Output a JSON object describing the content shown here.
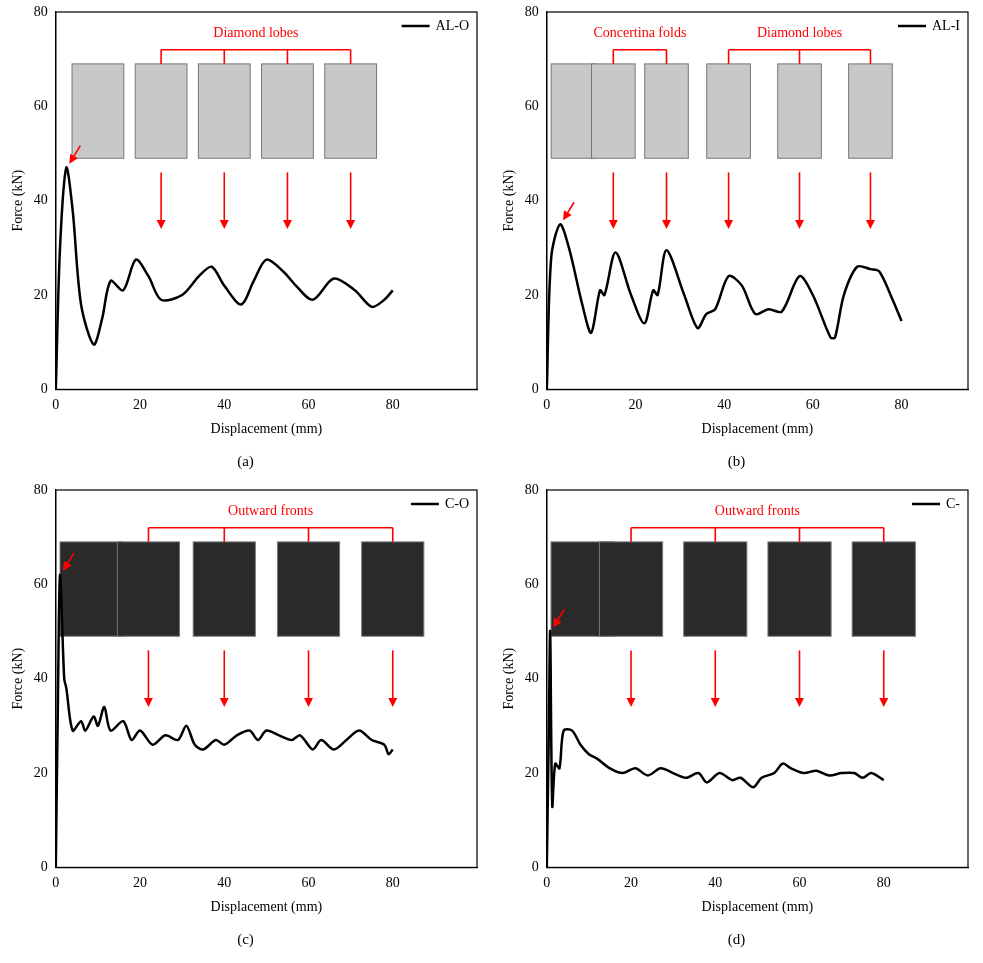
{
  "chart_data": [
    {
      "type": "line",
      "panel_label": "(a)",
      "xlabel": "Displacement (mm)",
      "ylabel": "Force (kN)",
      "xlim": [
        0,
        100
      ],
      "xticks": [
        0,
        20,
        40,
        60,
        80
      ],
      "ylim": [
        0,
        80
      ],
      "yticks": [
        0,
        20,
        40,
        60,
        80
      ],
      "grid": false,
      "legend": "upper right",
      "series": [
        {
          "name": "AL-O",
          "color": "#000000",
          "x": [
            0,
            1,
            2.5,
            4,
            6,
            9,
            11,
            13,
            16,
            19,
            22,
            25,
            30,
            34,
            37,
            40,
            44,
            47,
            50,
            54,
            57,
            61,
            66,
            71,
            75,
            78,
            80
          ],
          "values": [
            0,
            30,
            47,
            38,
            18,
            9.5,
            15,
            23,
            21,
            27.5,
            24,
            19,
            20,
            24,
            26,
            22,
            18,
            23,
            27.5,
            25,
            22,
            19,
            23.5,
            21,
            17.5,
            19,
            21
          ]
        }
      ],
      "annotations": [
        {
          "text": "Diamond lobes",
          "x": [
            25,
            40,
            55,
            70
          ]
        }
      ]
    },
    {
      "type": "line",
      "panel_label": "(b)",
      "xlabel": "Displacement (mm)",
      "ylabel": "Force (kN)",
      "xlim": [
        0,
        95
      ],
      "xticks": [
        0,
        20,
        40,
        60,
        80
      ],
      "ylim": [
        0,
        80
      ],
      "yticks": [
        0,
        20,
        40,
        60,
        80
      ],
      "grid": false,
      "legend": "upper right",
      "series": [
        {
          "name": "AL-I",
          "color": "#000000",
          "x": [
            0,
            1,
            3,
            5,
            8,
            10,
            12,
            13,
            15.5,
            19,
            22,
            24,
            25,
            27,
            31,
            34,
            36,
            38,
            41,
            44,
            47,
            50,
            53,
            57,
            60,
            64,
            65,
            67,
            70,
            73,
            75,
            78,
            80
          ],
          "values": [
            0,
            28,
            35,
            30,
            18,
            12,
            21,
            20,
            29,
            20,
            14,
            21,
            20,
            29.5,
            20,
            13,
            16,
            17,
            24,
            22,
            16,
            17,
            16.5,
            24,
            20,
            11,
            11,
            20,
            26,
            25.5,
            25,
            19,
            14.5
          ]
        }
      ],
      "annotations": [
        {
          "text": "Concertina folds",
          "x": [
            15,
            27
          ]
        },
        {
          "text": "Diamond lobes",
          "x": [
            41,
            57,
            73
          ]
        }
      ]
    },
    {
      "type": "line",
      "panel_label": "(c)",
      "xlabel": "Displacement (mm)",
      "ylabel": "Force (kN)",
      "xlim": [
        0,
        100
      ],
      "xticks": [
        0,
        20,
        40,
        60,
        80
      ],
      "ylim": [
        0,
        80
      ],
      "yticks": [
        0,
        20,
        40,
        60,
        80
      ],
      "grid": false,
      "legend": "upper right",
      "series": [
        {
          "name": "C-O",
          "color": "#000000",
          "x": [
            0,
            0.5,
            1,
            2,
            2.5,
            4,
            6,
            7,
            9,
            10,
            11.5,
            13,
            16,
            18,
            20,
            23,
            26,
            29,
            31,
            33,
            35,
            38,
            40,
            43,
            46,
            48,
            50,
            53,
            56,
            58,
            61,
            63,
            66,
            69,
            72,
            75,
            78,
            79,
            80
          ],
          "values": [
            0,
            35,
            62,
            40,
            38,
            29,
            31,
            29,
            32,
            30,
            34,
            29,
            31,
            27,
            29,
            26,
            28,
            27,
            30,
            26,
            25,
            27,
            26,
            28,
            29,
            27,
            29,
            28,
            27,
            28,
            25,
            27,
            25,
            27,
            29,
            27,
            26,
            24,
            25
          ]
        }
      ],
      "annotations": [
        {
          "text": "Outward fronts",
          "x": [
            22,
            40,
            60,
            80
          ]
        }
      ]
    },
    {
      "type": "line",
      "panel_label": "(d)",
      "xlabel": "Displacement (mm)",
      "ylabel": "Force (kN)",
      "xlim": [
        0,
        100
      ],
      "xticks": [
        0,
        20,
        40,
        60,
        80
      ],
      "ylim": [
        0,
        80
      ],
      "yticks": [
        0,
        20,
        40,
        60,
        80
      ],
      "grid": false,
      "legend": "upper right",
      "series": [
        {
          "name": "C-",
          "color": "#000000",
          "x": [
            0,
            0.5,
            0.8,
            1.3,
            2,
            3,
            4,
            6,
            8,
            10,
            12,
            15,
            18,
            21,
            24,
            27,
            30,
            33,
            36,
            38,
            41,
            44,
            46,
            49,
            51,
            54,
            56,
            58,
            61,
            64,
            67,
            70,
            73,
            75,
            77,
            80
          ],
          "values": [
            0,
            30,
            50,
            13,
            22,
            21,
            29,
            29,
            26,
            24,
            23,
            21,
            20,
            21,
            19.5,
            21,
            20,
            19,
            20,
            18,
            20,
            18.5,
            19,
            17,
            19,
            20,
            22,
            21,
            20,
            20.5,
            19.5,
            20,
            20,
            19,
            20,
            18.5
          ]
        }
      ],
      "annotations": [
        {
          "text": "Outward fronts",
          "x": [
            20,
            40,
            60,
            80
          ]
        }
      ]
    }
  ]
}
